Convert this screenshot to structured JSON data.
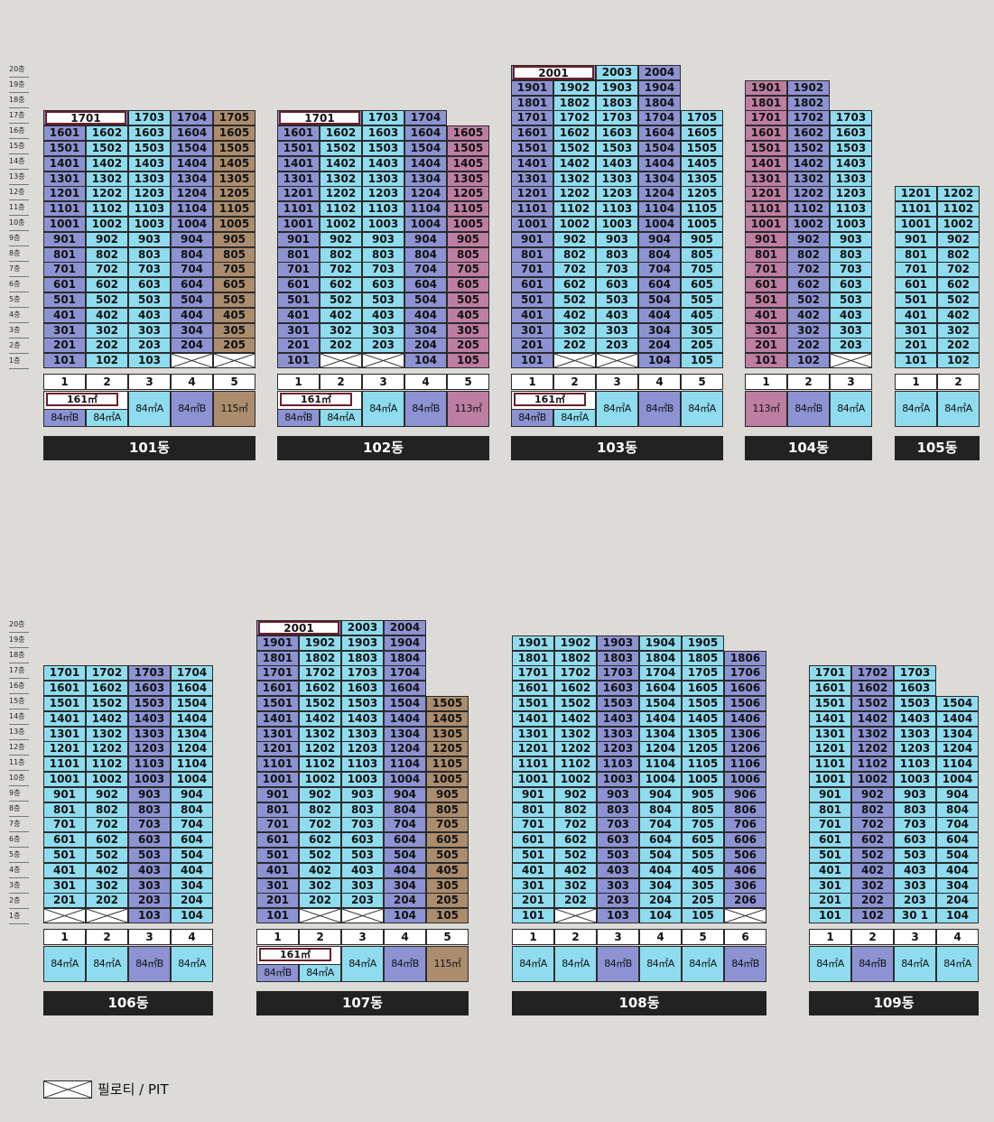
{
  "floor_labels": [
    "20층",
    "19층",
    "18층",
    "17층",
    "16층",
    "15층",
    "14층",
    "13층",
    "12층",
    "11층",
    "10층",
    "9층",
    "8층",
    "7층",
    "6층",
    "5층",
    "4층",
    "3층",
    "2층",
    "1층"
  ],
  "legend": {
    "pit_label": "필로티 / PIT"
  },
  "colors": {
    "type_84A": "#8fdcef",
    "type_84B": "#8d93d2",
    "type_113": "#bd7ea2",
    "type_115": "#ab8d6e",
    "type_161_border": "#6e1e2b"
  },
  "buildings": [
    {
      "name": "101동",
      "lines": [
        {
          "no": "1",
          "floors": [
            1,
            16
          ],
          "pit": [],
          "top": {
            "floor": 17,
            "span": 2,
            "label": "1701"
          }
        },
        {
          "no": "2",
          "floors": [
            1,
            16
          ],
          "pit": []
        },
        {
          "no": "3",
          "floors": [
            1,
            17
          ],
          "pit": []
        },
        {
          "no": "4",
          "floors": [
            2,
            17
          ],
          "pit": [
            1
          ]
        },
        {
          "no": "5",
          "floors": [
            2,
            17
          ],
          "pit": [
            1
          ]
        }
      ],
      "types": [
        {
          "label": "84㎡B",
          "c": "cB",
          "big": "161㎡"
        },
        {
          "label": "84㎡A",
          "c": "cA"
        },
        {
          "label": "84㎡A",
          "c": "cA"
        },
        {
          "label": "84㎡B",
          "c": "cB"
        },
        {
          "label": "115㎡",
          "c": "cT"
        }
      ]
    },
    {
      "name": "102동",
      "lines": [
        {
          "no": "1",
          "floors": [
            1,
            16
          ],
          "pit": [],
          "top": {
            "floor": 17,
            "span": 2,
            "label": "1701"
          }
        },
        {
          "no": "2",
          "floors": [
            2,
            16
          ],
          "pit": [
            1
          ]
        },
        {
          "no": "3",
          "floors": [
            2,
            17
          ],
          "pit": [
            1
          ]
        },
        {
          "no": "4",
          "floors": [
            1,
            17
          ],
          "pit": []
        },
        {
          "no": "5",
          "floors": [
            1,
            16
          ],
          "pit": []
        }
      ],
      "types": [
        {
          "label": "84㎡B",
          "c": "cB",
          "big": "161㎡"
        },
        {
          "label": "84㎡A",
          "c": "cA"
        },
        {
          "label": "84㎡A",
          "c": "cA"
        },
        {
          "label": "84㎡B",
          "c": "cB"
        },
        {
          "label": "113㎡",
          "c": "cM"
        }
      ]
    },
    {
      "name": "103동",
      "lines": [
        {
          "no": "1",
          "floors": [
            1,
            19
          ],
          "pit": [],
          "top": {
            "floor": 20,
            "span": 2,
            "label": "2001"
          }
        },
        {
          "no": "2",
          "floors": [
            2,
            19
          ],
          "pit": [
            1
          ]
        },
        {
          "no": "3",
          "floors": [
            2,
            20
          ],
          "pit": [
            1
          ]
        },
        {
          "no": "4",
          "floors": [
            1,
            20
          ],
          "pit": []
        },
        {
          "no": "5",
          "floors": [
            1,
            17
          ],
          "pit": []
        }
      ],
      "types": [
        {
          "label": "84㎡B",
          "c": "cB",
          "big": "161㎡"
        },
        {
          "label": "84㎡A",
          "c": "cA"
        },
        {
          "label": "84㎡A",
          "c": "cA"
        },
        {
          "label": "84㎡B",
          "c": "cB"
        },
        {
          "label": "84㎡A",
          "c": "cA"
        }
      ]
    },
    {
      "name": "104동",
      "lines": [
        {
          "no": "1",
          "floors": [
            1,
            19
          ],
          "pit": []
        },
        {
          "no": "2",
          "floors": [
            1,
            19
          ],
          "pit": []
        },
        {
          "no": "3",
          "floors": [
            2,
            17
          ],
          "pit": [
            1
          ]
        }
      ],
      "types": [
        {
          "label": "113㎡",
          "c": "cM"
        },
        {
          "label": "84㎡B",
          "c": "cB"
        },
        {
          "label": "84㎡A",
          "c": "cA"
        }
      ]
    },
    {
      "name": "105동",
      "lines": [
        {
          "no": "1",
          "floors": [
            1,
            12
          ],
          "pit": []
        },
        {
          "no": "2",
          "floors": [
            1,
            12
          ],
          "pit": []
        }
      ],
      "types": [
        {
          "label": "84㎡A",
          "c": "cA"
        },
        {
          "label": "84㎡A",
          "c": "cA"
        }
      ]
    },
    {
      "name": "106동",
      "lines": [
        {
          "no": "1",
          "floors": [
            2,
            17
          ],
          "pit": [
            1
          ]
        },
        {
          "no": "2",
          "floors": [
            2,
            17
          ],
          "pit": [
            1
          ]
        },
        {
          "no": "3",
          "floors": [
            1,
            17
          ],
          "pit": []
        },
        {
          "no": "4",
          "floors": [
            1,
            17
          ],
          "pit": []
        }
      ],
      "types": [
        {
          "label": "84㎡A",
          "c": "cA"
        },
        {
          "label": "84㎡A",
          "c": "cA"
        },
        {
          "label": "84㎡B",
          "c": "cB"
        },
        {
          "label": "84㎡A",
          "c": "cA"
        }
      ]
    },
    {
      "name": "107동",
      "lines": [
        {
          "no": "1",
          "floors": [
            1,
            19
          ],
          "pit": [],
          "top": {
            "floor": 20,
            "span": 2,
            "label": "2001"
          }
        },
        {
          "no": "2",
          "floors": [
            2,
            19
          ],
          "pit": [
            1
          ]
        },
        {
          "no": "3",
          "floors": [
            2,
            20
          ],
          "pit": [
            1
          ]
        },
        {
          "no": "4",
          "floors": [
            1,
            20
          ],
          "pit": []
        },
        {
          "no": "5",
          "floors": [
            1,
            15
          ],
          "pit": []
        }
      ],
      "types": [
        {
          "label": "84㎡B",
          "c": "cB",
          "big": "161㎡"
        },
        {
          "label": "84㎡A",
          "c": "cA"
        },
        {
          "label": "84㎡A",
          "c": "cA"
        },
        {
          "label": "84㎡B",
          "c": "cB"
        },
        {
          "label": "115㎡",
          "c": "cT"
        }
      ]
    },
    {
      "name": "108동",
      "lines": [
        {
          "no": "1",
          "floors": [
            1,
            19
          ],
          "pit": []
        },
        {
          "no": "2",
          "floors": [
            2,
            19
          ],
          "pit": [
            1
          ]
        },
        {
          "no": "3",
          "floors": [
            1,
            19
          ],
          "pit": []
        },
        {
          "no": "4",
          "floors": [
            1,
            19
          ],
          "pit": []
        },
        {
          "no": "5",
          "floors": [
            1,
            19
          ],
          "pit": []
        },
        {
          "no": "6",
          "floors": [
            2,
            18
          ],
          "pit": [
            1
          ]
        }
      ],
      "types": [
        {
          "label": "84㎡A",
          "c": "cA"
        },
        {
          "label": "84㎡A",
          "c": "cA"
        },
        {
          "label": "84㎡B",
          "c": "cB"
        },
        {
          "label": "84㎡A",
          "c": "cA"
        },
        {
          "label": "84㎡A",
          "c": "cA"
        },
        {
          "label": "84㎡B",
          "c": "cB"
        }
      ]
    },
    {
      "name": "109동",
      "lines": [
        {
          "no": "1",
          "floors": [
            1,
            17
          ],
          "pit": []
        },
        {
          "no": "2",
          "floors": [
            1,
            17
          ],
          "pit": []
        },
        {
          "no": "3",
          "floors": [
            1,
            17
          ],
          "pit": []
        },
        {
          "no": "4",
          "floors": [
            1,
            15
          ],
          "pit": []
        }
      ],
      "types": [
        {
          "label": "84㎡A",
          "c": "cA"
        },
        {
          "label": "84㎡B",
          "c": "cB"
        },
        {
          "label": "84㎡A",
          "c": "cA"
        },
        {
          "label": "84㎡A",
          "c": "cA"
        }
      ]
    }
  ],
  "unit_overrides": {
    "109동": {
      "3-1": "30 1"
    }
  }
}
